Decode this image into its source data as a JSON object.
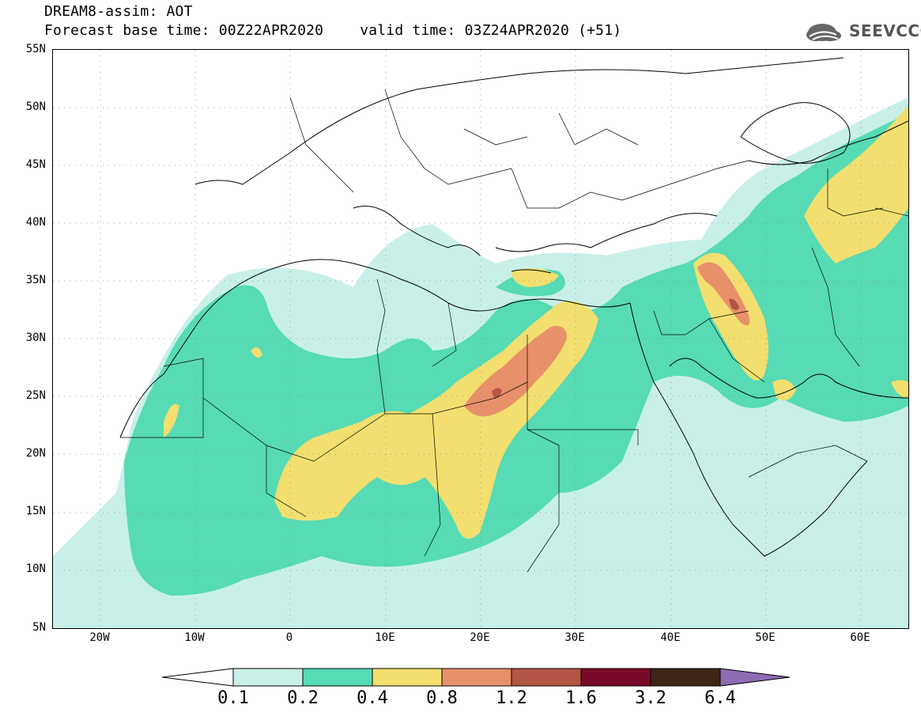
{
  "header": {
    "model_line": "DREAM8-assim: AOT",
    "base_time": "Forecast base time: 00Z22APR2020",
    "valid_time": "valid time: 03Z24APR2020 (+51)"
  },
  "logo": {
    "text": "SEEVCCC",
    "icon": "cloud-logo-icon"
  },
  "map": {
    "lat_labels": [
      "55N",
      "50N",
      "45N",
      "40N",
      "35N",
      "30N",
      "25N",
      "20N",
      "15N",
      "10N",
      "5N"
    ],
    "lon_labels": [
      "20W",
      "10W",
      "0",
      "10E",
      "20E",
      "30E",
      "40E",
      "50E",
      "60E"
    ],
    "lon_range": [
      -25,
      65
    ],
    "lat_range": [
      5,
      55
    ],
    "gridlines": "dotted"
  },
  "colorbar": {
    "labels": [
      "0.1",
      "0.2",
      "0.4",
      "0.8",
      "1.2",
      "1.6",
      "3.2",
      "6.4"
    ],
    "colors": [
      "#c8f0e8",
      "#56dbb4",
      "#f2df6f",
      "#e8906a",
      "#b35545",
      "#7a0a2a",
      "#3b2618",
      "#8e6bb3"
    ]
  }
}
